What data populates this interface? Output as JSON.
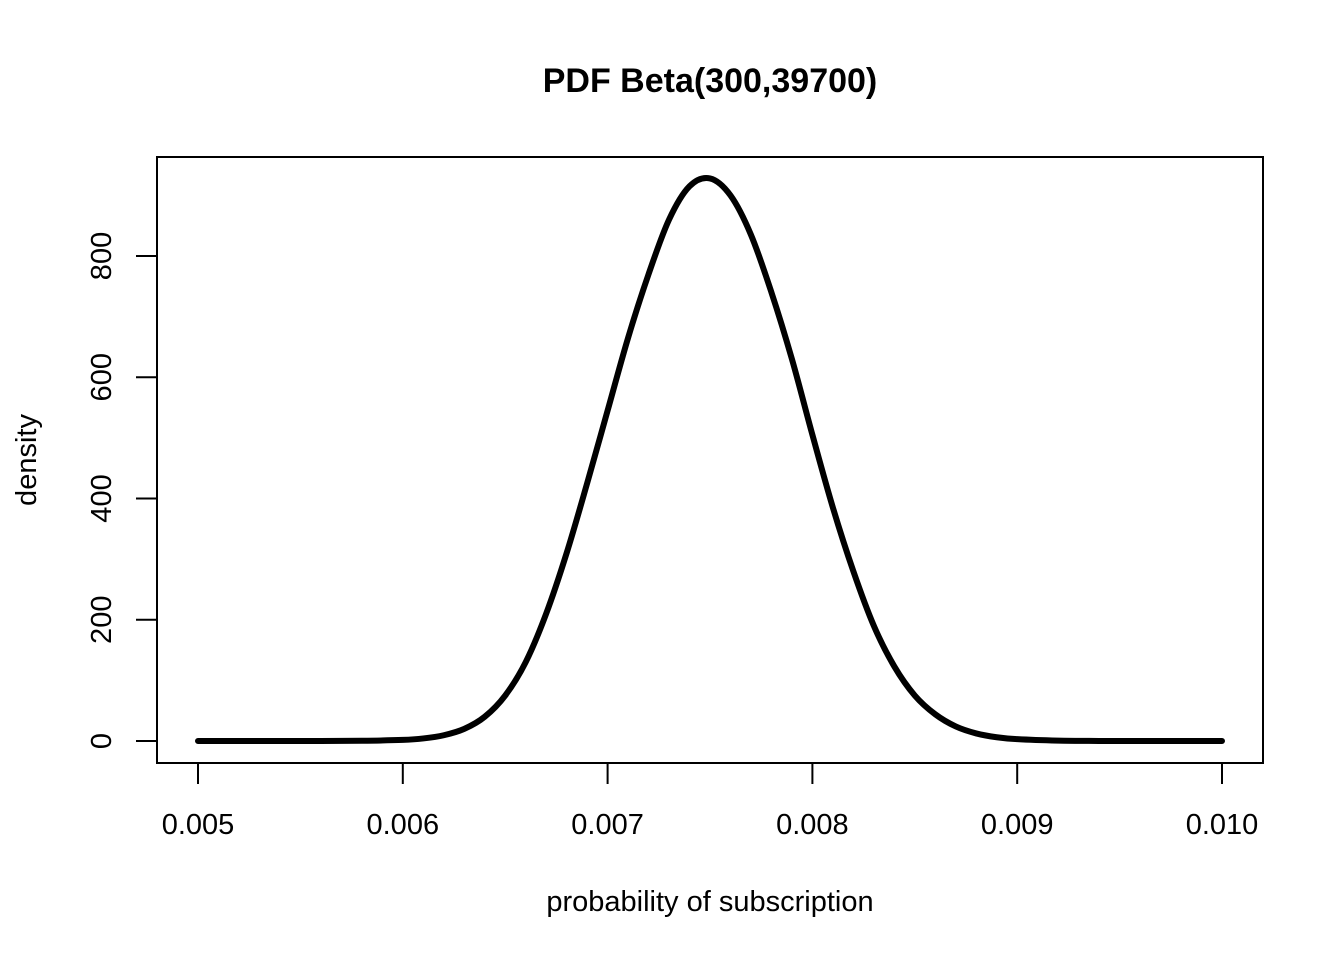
{
  "chart_data": {
    "type": "line",
    "title": "PDF Beta(300,39700)",
    "xlabel": "probability of subscription",
    "ylabel": "density",
    "xlim": [
      0.005,
      0.01
    ],
    "ylim": [
      0,
      930
    ],
    "grid": false,
    "legend": "none",
    "x_ticks": [
      "0.005",
      "0.006",
      "0.007",
      "0.008",
      "0.009",
      "0.010"
    ],
    "x_tick_values": [
      0.005,
      0.006,
      0.007,
      0.008,
      0.009,
      0.01
    ],
    "y_ticks": [
      "0",
      "200",
      "400",
      "600",
      "800"
    ],
    "y_tick_values": [
      0,
      200,
      400,
      600,
      800
    ],
    "series": [
      {
        "color": "#000000",
        "x": [
          0.005,
          0.0052,
          0.0054,
          0.0056,
          0.0058,
          0.006,
          0.0061,
          0.0062,
          0.0063,
          0.0064,
          0.0065,
          0.0066,
          0.0067,
          0.0068,
          0.0069,
          0.007,
          0.0071,
          0.0072,
          0.0073,
          0.0074,
          0.0075,
          0.0076,
          0.0077,
          0.0078,
          0.0079,
          0.008,
          0.0081,
          0.0082,
          0.0083,
          0.0084,
          0.0085,
          0.0086,
          0.0087,
          0.0088,
          0.0089,
          0.009,
          0.0092,
          0.0094,
          0.0096,
          0.0098,
          0.01
        ],
        "y": [
          0,
          0,
          0,
          0.1,
          0.4,
          1.8,
          4.2,
          9.5,
          20,
          40,
          75,
          130,
          210,
          310,
          425,
          545,
          665,
          770,
          860,
          915,
          928,
          900,
          835,
          740,
          630,
          505,
          385,
          280,
          190,
          123,
          75,
          44,
          24,
          12.5,
          6.2,
          3.0,
          0.6,
          0.1,
          0,
          0,
          0
        ]
      }
    ]
  }
}
